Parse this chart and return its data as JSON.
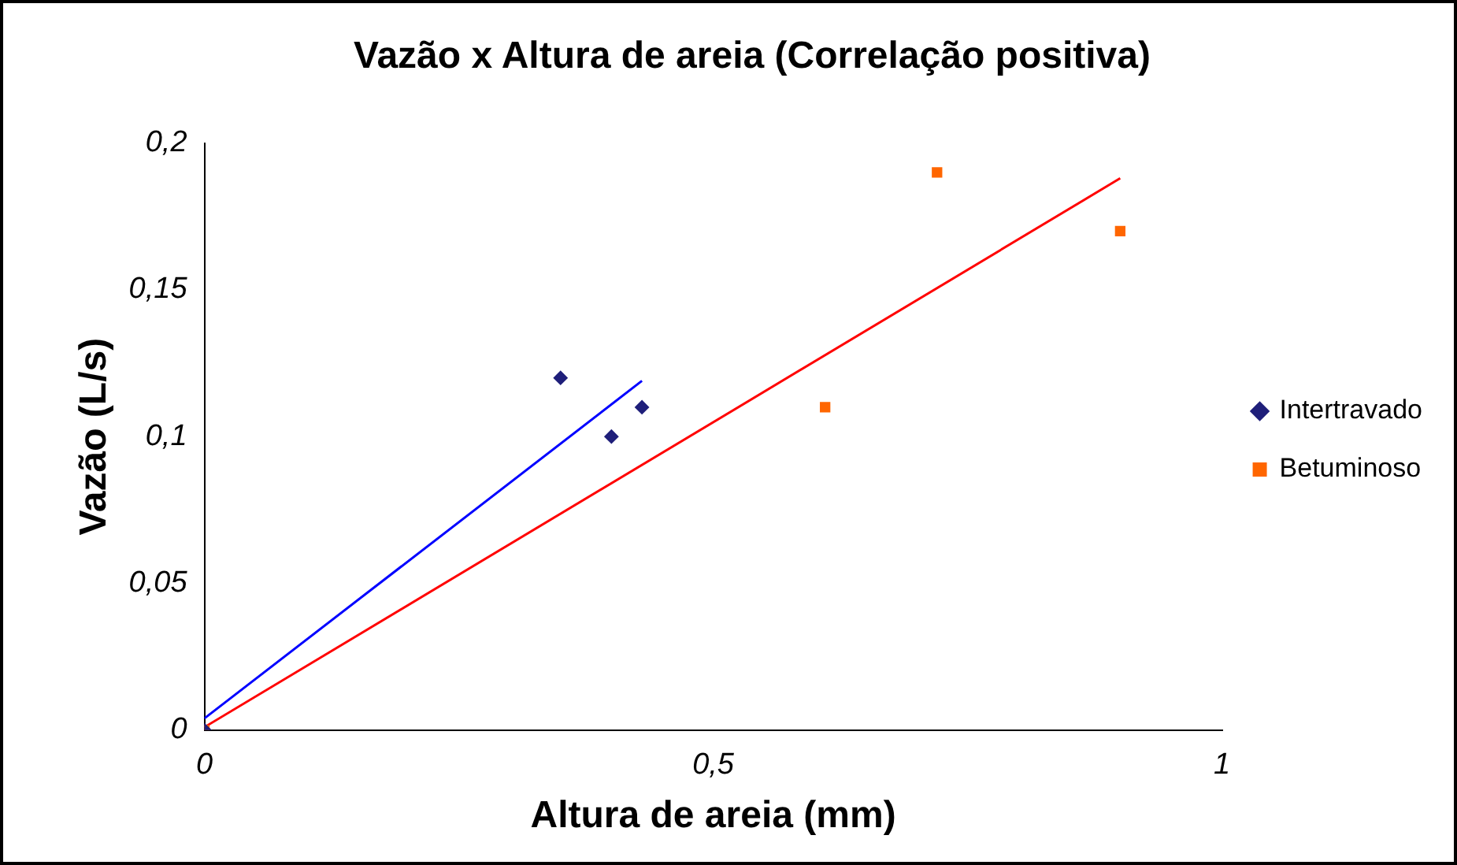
{
  "chart_data": {
    "type": "scatter",
    "title": "Vazão x Altura de areia (Correlação positiva)",
    "xlabel": "Altura de areia (mm)",
    "ylabel": "Vazão (L/s)",
    "series": [
      {
        "name": "Intertravado",
        "color": "#1f1f7a",
        "marker": "diamond",
        "x": [
          0,
          0.35,
          0.4,
          0.43
        ],
        "values": [
          0,
          0.12,
          0.1,
          0.11
        ]
      },
      {
        "name": "Betuminoso",
        "color": "#ff6600",
        "marker": "square",
        "x": [
          0,
          0.61,
          0.72,
          0.9
        ],
        "values": [
          0,
          0.11,
          0.19,
          0.17
        ]
      },
      {
        "type": "line",
        "color": "#0000ff",
        "x": [
          0,
          0.43
        ],
        "values": [
          0.004,
          0.119
        ]
      },
      {
        "type": "line",
        "color": "#ff0000",
        "x": [
          0,
          0.9
        ],
        "values": [
          0.001,
          0.188
        ]
      }
    ],
    "xlim": [
      0,
      1
    ],
    "xticks": [
      0,
      {
        "value": 0.5,
        "label": "0,5"
      },
      1
    ],
    "ylim": [
      0,
      0.2
    ],
    "yticks": [
      0,
      {
        "value": 0.05,
        "label": "0,05"
      },
      {
        "value": 0.1,
        "label": "0,1"
      },
      {
        "value": 0.15,
        "label": "0,15"
      },
      {
        "value": 0.2,
        "label": "0,2"
      }
    ],
    "grid": false,
    "legend": "right"
  }
}
